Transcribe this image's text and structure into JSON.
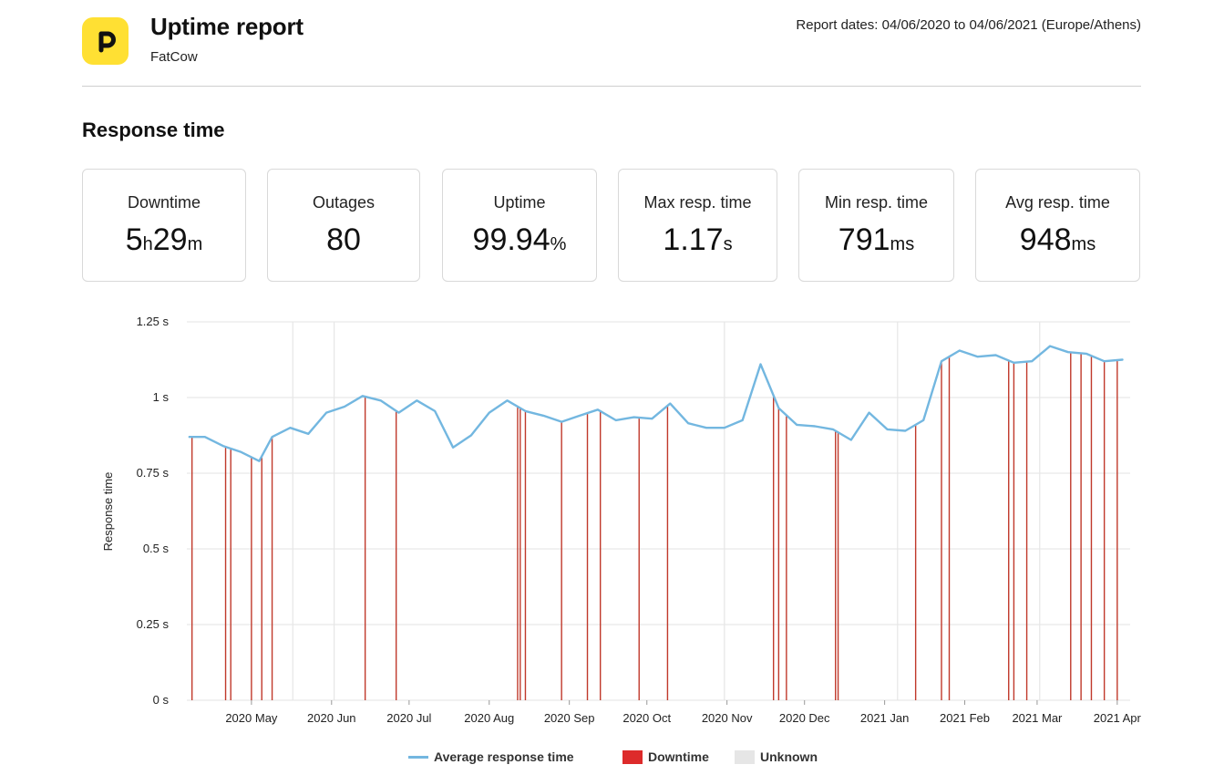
{
  "header": {
    "title": "Uptime report",
    "subtitle": "FatCow",
    "report_dates": "Report dates: 04/06/2020 to 04/06/2021 (Europe/Athens)"
  },
  "section_title": "Response time",
  "stats": [
    {
      "label": "Downtime",
      "parts": [
        {
          "t": "5",
          "u": false
        },
        {
          "t": "h",
          "u": true
        },
        {
          "t": "29",
          "u": false
        },
        {
          "t": "m",
          "u": true
        }
      ]
    },
    {
      "label": "Outages",
      "parts": [
        {
          "t": "80",
          "u": false
        }
      ]
    },
    {
      "label": "Uptime",
      "parts": [
        {
          "t": "99.94",
          "u": false
        },
        {
          "t": "%",
          "u": true
        }
      ]
    },
    {
      "label": "Max resp. time",
      "parts": [
        {
          "t": "1.17",
          "u": false
        },
        {
          "t": "s",
          "u": true
        }
      ]
    },
    {
      "label": "Min resp. time",
      "parts": [
        {
          "t": "791",
          "u": false
        },
        {
          "t": "ms",
          "u": true
        }
      ]
    },
    {
      "label": "Avg resp. time",
      "parts": [
        {
          "t": "948",
          "u": false
        },
        {
          "t": "ms",
          "u": true
        }
      ]
    }
  ],
  "colors": {
    "line": "#73b7e0",
    "downtime": "#dd2b2b",
    "downtime_line": "#c0392b",
    "unknown": "#e6e6e6",
    "grid": "#e3e3e3",
    "logo_bg": "#ffe033"
  },
  "chart_data": {
    "type": "line",
    "title": "",
    "xlabel": "",
    "ylabel": "Response time",
    "ylim": [
      0,
      1.25
    ],
    "yticks": [
      {
        "value": 0,
        "label": "0 s"
      },
      {
        "value": 0.25,
        "label": "0.25 s"
      },
      {
        "value": 0.5,
        "label": "0.5 s"
      },
      {
        "value": 0.75,
        "label": "0.75 s"
      },
      {
        "value": 1,
        "label": "1 s"
      },
      {
        "value": 1.25,
        "label": "1.25 s"
      }
    ],
    "xlim": [
      "2020-04-06",
      "2021-04-06"
    ],
    "xticks": [
      {
        "date": "2020-05-01",
        "label": "2020 May"
      },
      {
        "date": "2020-06-01",
        "label": "2020 Jun"
      },
      {
        "date": "2020-07-01",
        "label": "2020 Jul"
      },
      {
        "date": "2020-08-01",
        "label": "2020 Aug"
      },
      {
        "date": "2020-09-01",
        "label": "2020 Sep"
      },
      {
        "date": "2020-10-01",
        "label": "2020 Oct"
      },
      {
        "date": "2020-11-01",
        "label": "2020 Nov"
      },
      {
        "date": "2020-12-01",
        "label": "2020 Dec"
      },
      {
        "date": "2021-01-01",
        "label": "2021 Jan"
      },
      {
        "date": "2021-02-01",
        "label": "2021 Feb"
      },
      {
        "date": "2021-03-01",
        "label": "2021 Mar"
      },
      {
        "date": "2021-04-01",
        "label": "2021 Apr"
      }
    ],
    "grid": true,
    "legend_position": "bottom",
    "series": [
      {
        "name": "Average response time",
        "points": [
          [
            "2020-04-07",
            0.87
          ],
          [
            "2020-04-13",
            0.87
          ],
          [
            "2020-04-20",
            0.84
          ],
          [
            "2020-04-27",
            0.82
          ],
          [
            "2020-05-04",
            0.79
          ],
          [
            "2020-05-09",
            0.87
          ],
          [
            "2020-05-16",
            0.9
          ],
          [
            "2020-05-23",
            0.88
          ],
          [
            "2020-05-30",
            0.95
          ],
          [
            "2020-06-06",
            0.97
          ],
          [
            "2020-06-13",
            1.005
          ],
          [
            "2020-06-20",
            0.99
          ],
          [
            "2020-06-27",
            0.95
          ],
          [
            "2020-07-04",
            0.99
          ],
          [
            "2020-07-11",
            0.955
          ],
          [
            "2020-07-18",
            0.835
          ],
          [
            "2020-07-25",
            0.875
          ],
          [
            "2020-08-01",
            0.95
          ],
          [
            "2020-08-08",
            0.99
          ],
          [
            "2020-08-15",
            0.955
          ],
          [
            "2020-08-22",
            0.94
          ],
          [
            "2020-08-29",
            0.92
          ],
          [
            "2020-09-05",
            0.94
          ],
          [
            "2020-09-12",
            0.96
          ],
          [
            "2020-09-19",
            0.925
          ],
          [
            "2020-09-26",
            0.935
          ],
          [
            "2020-10-03",
            0.93
          ],
          [
            "2020-10-10",
            0.98
          ],
          [
            "2020-10-17",
            0.915
          ],
          [
            "2020-10-24",
            0.9
          ],
          [
            "2020-10-31",
            0.9
          ],
          [
            "2020-11-07",
            0.925
          ],
          [
            "2020-11-14",
            1.11
          ],
          [
            "2020-11-21",
            0.965
          ],
          [
            "2020-11-28",
            0.91
          ],
          [
            "2020-12-05",
            0.905
          ],
          [
            "2020-12-12",
            0.895
          ],
          [
            "2020-12-19",
            0.86
          ],
          [
            "2020-12-26",
            0.95
          ],
          [
            "2021-01-02",
            0.895
          ],
          [
            "2021-01-09",
            0.89
          ],
          [
            "2021-01-16",
            0.925
          ],
          [
            "2021-01-23",
            1.12
          ],
          [
            "2021-01-30",
            1.155
          ],
          [
            "2021-02-06",
            1.135
          ],
          [
            "2021-02-13",
            1.14
          ],
          [
            "2021-02-20",
            1.115
          ],
          [
            "2021-02-27",
            1.12
          ],
          [
            "2021-03-06",
            1.17
          ],
          [
            "2021-03-13",
            1.15
          ],
          [
            "2021-03-20",
            1.145
          ],
          [
            "2021-03-27",
            1.12
          ],
          [
            "2021-04-03",
            1.125
          ]
        ]
      }
    ],
    "downtime_events": [
      "2020-04-08",
      "2020-04-21",
      "2020-04-23",
      "2020-05-01",
      "2020-05-05",
      "2020-05-09",
      "2020-06-14",
      "2020-06-26",
      "2020-08-12",
      "2020-08-13",
      "2020-08-15",
      "2020-08-29",
      "2020-09-08",
      "2020-09-13",
      "2020-09-28",
      "2020-10-09",
      "2020-11-19",
      "2020-11-21",
      "2020-11-24",
      "2020-12-13",
      "2020-12-14",
      "2021-01-13",
      "2021-01-23",
      "2021-01-26",
      "2021-02-18",
      "2021-02-20",
      "2021-02-25",
      "2021-03-14",
      "2021-03-18",
      "2021-03-22",
      "2021-03-27",
      "2021-04-01"
    ],
    "unknown_events": [
      "2020-05-17",
      "2020-06-02",
      "2020-10-31",
      "2021-01-06",
      "2021-03-02"
    ],
    "legend": [
      {
        "label": "Average response time",
        "kind": "line"
      },
      {
        "label": "Downtime",
        "kind": "downtime"
      },
      {
        "label": "Unknown",
        "kind": "unknown"
      }
    ]
  }
}
